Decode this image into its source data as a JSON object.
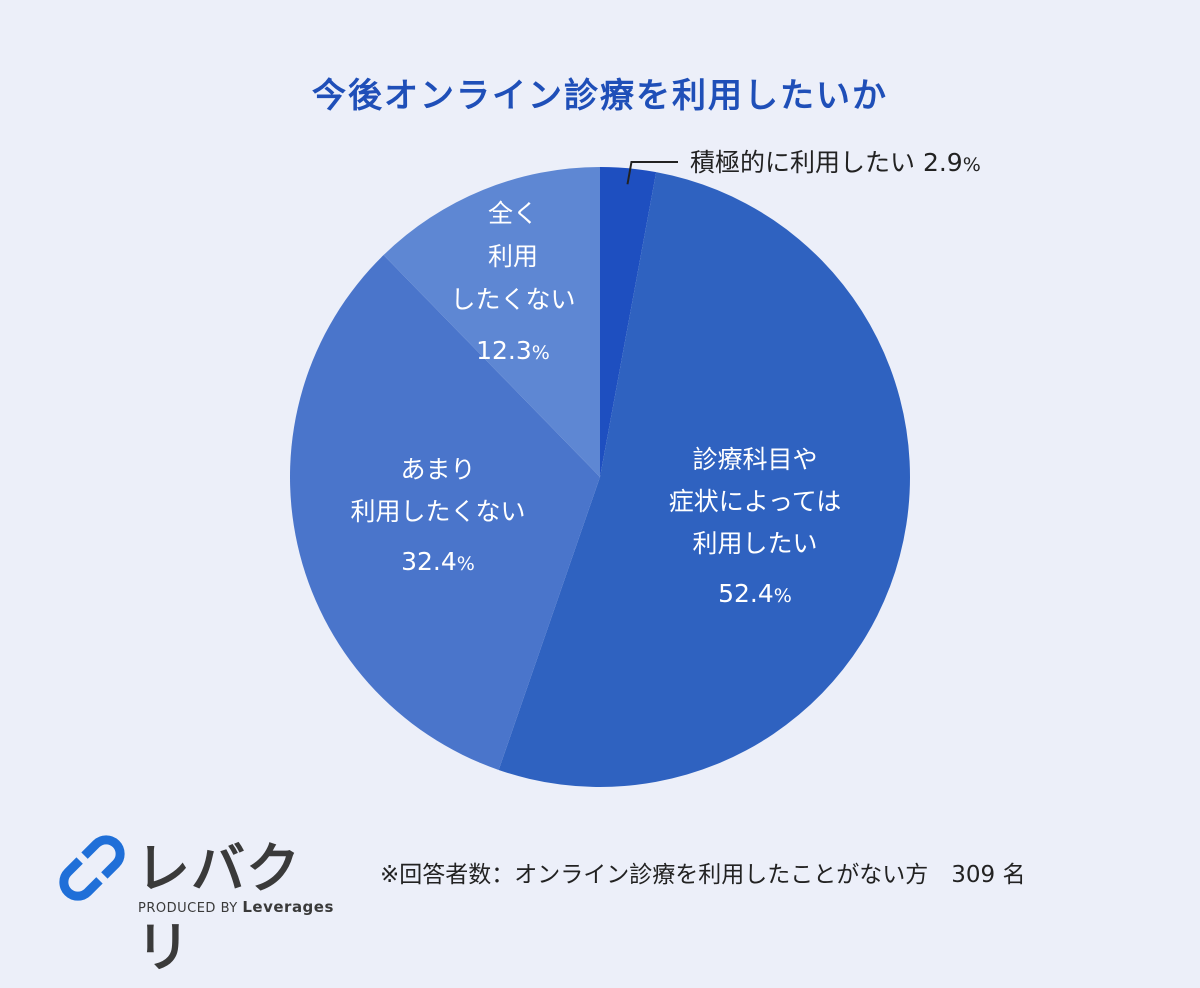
{
  "title": "今後オンライン診療を利用したいか",
  "chart_data": {
    "type": "pie",
    "title": "今後オンライン診療を利用したいか",
    "start_angle_deg": 0,
    "direction": "clockwise",
    "slices": [
      {
        "name": "積極的に利用したい",
        "lines": [
          "積極的に利用したい"
        ],
        "value": 2.9,
        "value_text": "2.9",
        "unit": "%",
        "color": "#1e4fc0",
        "label_position": "outside"
      },
      {
        "name": "診療科目や症状によっては利用したい",
        "lines": [
          "診療科目や",
          "症状によっては",
          "利用したい"
        ],
        "value": 52.4,
        "value_text": "52.4",
        "unit": "%",
        "color": "#2f62c0",
        "label_position": "inside"
      },
      {
        "name": "あまり利用したくない",
        "lines": [
          "あまり",
          "利用したくない"
        ],
        "value": 32.4,
        "value_text": "32.4",
        "unit": "%",
        "color": "#4a75cb",
        "label_position": "inside"
      },
      {
        "name": "全く利用したくない",
        "lines": [
          "全く",
          "利用",
          "したくない"
        ],
        "value": 12.3,
        "value_text": "12.3",
        "unit": "%",
        "color": "#5e87d3",
        "label_position": "inside"
      }
    ]
  },
  "logo": {
    "text": "レバクリ",
    "produced_by": "PRODUCED BY",
    "brand": "Leverages",
    "icon": "link-capsule-icon",
    "color": "#1f6fd8"
  },
  "note": "※回答者数：オンライン診療を利用したことがない方　309 名"
}
